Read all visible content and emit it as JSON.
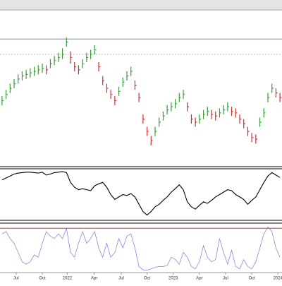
{
  "chart_data": [
    {
      "type": "ohlc",
      "xlim": [
        -0.5,
        69.5
      ],
      "xticks": [
        {
          "value": 3.5,
          "label": "Jul"
        },
        {
          "value": 10,
          "label": "Oct"
        },
        {
          "value": 16.2,
          "label": "2022"
        },
        {
          "value": 22.9,
          "label": "Apr"
        },
        {
          "value": 29.6,
          "label": "Jul"
        },
        {
          "value": 36,
          "label": "Oct"
        },
        {
          "value": 42.5,
          "label": "2023"
        },
        {
          "value": 49,
          "label": "Apr"
        },
        {
          "value": 55.5,
          "label": "Jul"
        },
        {
          "value": 62,
          "label": "Oct"
        },
        {
          "value": 68.5,
          "label": "2024"
        }
      ],
      "ylim": [
        0,
        100
      ],
      "hlines": [
        {
          "value": 82,
          "color": "#5b8fd6",
          "dash": false
        },
        {
          "value": 72,
          "color": "#bbbbbb",
          "dash": true
        }
      ],
      "up_color": "#3a9b3a",
      "down_color": "#d03030",
      "high": [
        45,
        49,
        53,
        56,
        59,
        61,
        62,
        63,
        64,
        65,
        66,
        65,
        69,
        71,
        73,
        76,
        83,
        74,
        67,
        65,
        69,
        73,
        75,
        78,
        67,
        58,
        53,
        49,
        45,
        51,
        57,
        61,
        64,
        55,
        47,
        33,
        25,
        19,
        25,
        31,
        35,
        39,
        41,
        43,
        47,
        49,
        41,
        33,
        31,
        33,
        36,
        38,
        36,
        35,
        37,
        39,
        41,
        38,
        37,
        33,
        30,
        25,
        21,
        20,
        31,
        37,
        47,
        53,
        50,
        47
      ],
      "low": [
        39,
        43,
        47,
        50,
        53,
        55,
        56,
        57,
        58,
        59,
        60,
        59,
        63,
        65,
        67,
        69,
        77,
        66,
        61,
        59,
        63,
        67,
        69,
        72,
        61,
        52,
        47,
        43,
        39,
        45,
        51,
        55,
        58,
        49,
        41,
        27,
        19,
        13,
        19,
        25,
        29,
        33,
        35,
        37,
        41,
        43,
        35,
        27,
        25,
        27,
        30,
        32,
        30,
        29,
        31,
        33,
        35,
        32,
        31,
        27,
        24,
        19,
        15,
        14,
        25,
        31,
        41,
        47,
        44,
        41
      ],
      "close": [
        42,
        46,
        50,
        53,
        56,
        58,
        59,
        60,
        61,
        62,
        63,
        62,
        66,
        68,
        70,
        72,
        80,
        70,
        64,
        62,
        66,
        70,
        72,
        75,
        64,
        55,
        50,
        46,
        42,
        48,
        54,
        58,
        61,
        52,
        44,
        30,
        22,
        16,
        22,
        28,
        32,
        36,
        38,
        40,
        44,
        46,
        38,
        30,
        28,
        30,
        33,
        35,
        33,
        32,
        34,
        36,
        38,
        35,
        34,
        30,
        27,
        22,
        18,
        17,
        28,
        34,
        44,
        50,
        47,
        44
      ]
    },
    {
      "type": "line",
      "ylim": [
        0,
        100
      ],
      "color": "#000000",
      "values": [
        80,
        84,
        88,
        92,
        94,
        95,
        96,
        96,
        95,
        94,
        96,
        90,
        92,
        95,
        96,
        97,
        95,
        75,
        65,
        60,
        62,
        60,
        58,
        68,
        72,
        75,
        65,
        50,
        40,
        45,
        50,
        48,
        52,
        45,
        30,
        15,
        8,
        15,
        25,
        30,
        38,
        45,
        55,
        62,
        70,
        60,
        35,
        25,
        20,
        28,
        35,
        32,
        38,
        45,
        50,
        55,
        60,
        58,
        50,
        45,
        40,
        30,
        38,
        45,
        60,
        75,
        88,
        95,
        90,
        85
      ]
    },
    {
      "type": "line",
      "ylim": [
        0,
        100
      ],
      "color": "#6f7fd6",
      "threshold": {
        "value": 92,
        "color": "#d03030"
      },
      "values": [
        80,
        85,
        70,
        60,
        40,
        20,
        15,
        20,
        35,
        30,
        60,
        85,
        75,
        70,
        80,
        70,
        92,
        40,
        30,
        60,
        85,
        60,
        70,
        85,
        50,
        30,
        60,
        30,
        40,
        70,
        50,
        75,
        80,
        50,
        10,
        3,
        2,
        5,
        8,
        10,
        10,
        12,
        30,
        25,
        15,
        40,
        30,
        10,
        5,
        20,
        55,
        30,
        20,
        25,
        70,
        40,
        15,
        45,
        10,
        5,
        25,
        10,
        5,
        20,
        50,
        80,
        95,
        85,
        50,
        30
      ]
    }
  ]
}
